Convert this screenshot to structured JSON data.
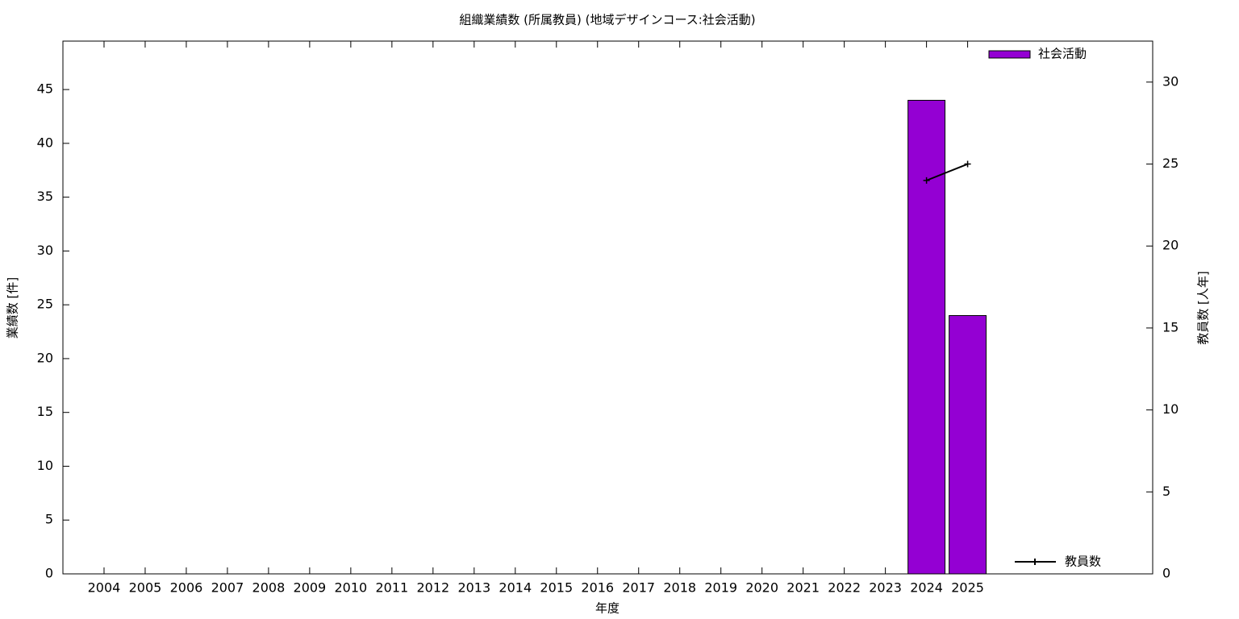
{
  "chart_data": {
    "type": "bar",
    "title": "組織業績数 (所属教員) (地域デザインコース:社会活動)",
    "x_label": "年度",
    "y_label": "業績数 [件]",
    "y2_label": "教員数 [人年]",
    "x": [
      2004,
      2005,
      2006,
      2007,
      2008,
      2009,
      2010,
      2011,
      2012,
      2013,
      2014,
      2015,
      2016,
      2017,
      2018,
      2019,
      2020,
      2021,
      2022,
      2023,
      2024,
      2025
    ],
    "xlim": [
      2003,
      2029.5
    ],
    "xticks": [
      2004,
      2005,
      2006,
      2007,
      2008,
      2009,
      2010,
      2011,
      2012,
      2013,
      2014,
      2015,
      2016,
      2017,
      2018,
      2019,
      2020,
      2021,
      2022,
      2023,
      2024,
      2025
    ],
    "ylim": [
      0,
      49.5
    ],
    "yticks": [
      0,
      5,
      10,
      15,
      20,
      25,
      30,
      35,
      40,
      45
    ],
    "y2lim": [
      0,
      32.5
    ],
    "y2ticks": [
      0,
      5,
      10,
      15,
      20,
      25,
      30
    ],
    "series": [
      {
        "name": "社会活動",
        "type": "bar",
        "color": "#9400d3",
        "values": [
          0,
          0,
          0,
          0,
          0,
          0,
          0,
          0,
          0,
          0,
          0,
          0,
          0,
          0,
          0,
          0,
          0,
          0,
          0,
          0,
          44,
          24
        ]
      },
      {
        "name": "教員数",
        "type": "line",
        "axis": "y2",
        "color": "#000000",
        "values": [
          null,
          null,
          null,
          null,
          null,
          null,
          null,
          null,
          null,
          null,
          null,
          null,
          null,
          null,
          null,
          null,
          null,
          null,
          null,
          null,
          24,
          25
        ]
      }
    ]
  }
}
